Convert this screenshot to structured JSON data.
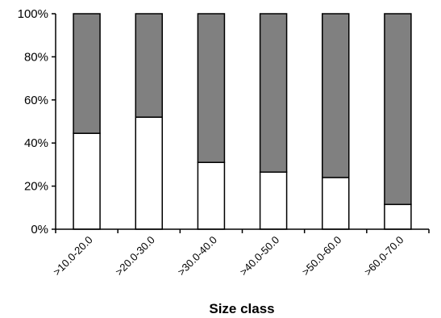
{
  "chart_data": {
    "type": "bar",
    "stacked": true,
    "percent": true,
    "categories": [
      ">10.0-20.0",
      ">20.0-30.0",
      ">30.0-40.0",
      ">40.0-50.0",
      ">50.0-60.0",
      ">60.0-70.0"
    ],
    "series": [
      {
        "values": [
          44.5,
          52,
          31,
          26.5,
          24,
          11.5
        ],
        "color": "#ffffff"
      },
      {
        "values": [
          55.5,
          48,
          69,
          73.5,
          76,
          88.5
        ],
        "color": "#808080"
      }
    ],
    "xlabel": "Size class",
    "ylabel": "",
    "ylim": [
      0,
      100
    ],
    "yticks": [
      "0%",
      "20%",
      "40%",
      "60%",
      "80%",
      "100%"
    ],
    "grid": false,
    "legend": "none"
  }
}
